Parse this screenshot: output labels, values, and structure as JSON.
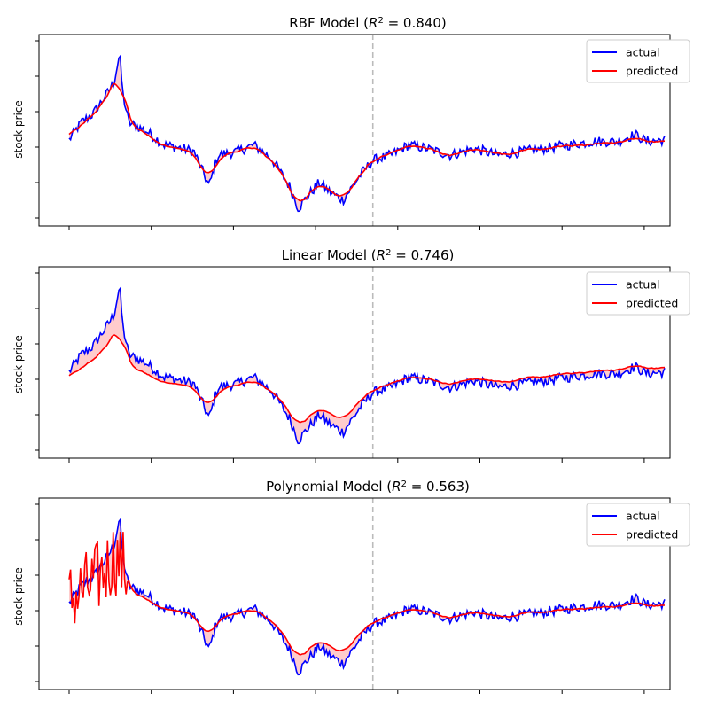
{
  "figure": {
    "shared_x_note": "",
    "colors": {
      "actual": "#0000ff",
      "predicted": "#ff0000",
      "gap_fill": "#ff9a9a",
      "split_line": "#bbbbbb"
    }
  },
  "chart_data": [
    {
      "type": "line",
      "title_prefix": "RBF Model (",
      "title_r2": "R",
      "title_r2_sup": "2",
      "title_suffix": " = 0.840)",
      "r2": 0.84,
      "xlabel": "",
      "ylabel": "stock price",
      "x_tick_labels": "none",
      "y_tick_labels": "none",
      "split_marker": "dashed vertical line at train/test split",
      "legend": {
        "placement": "top-right",
        "entries": [
          "actual",
          "predicted"
        ]
      },
      "series": [
        {
          "name": "actual",
          "color": "#0000ff"
        },
        {
          "name": "predicted",
          "color": "#ff0000"
        }
      ]
    },
    {
      "type": "line",
      "title_prefix": "Linear Model (",
      "title_r2": "R",
      "title_r2_sup": "2",
      "title_suffix": " = 0.746)",
      "r2": 0.746,
      "xlabel": "",
      "ylabel": "stock price",
      "x_tick_labels": "none",
      "y_tick_labels": "none",
      "split_marker": "dashed vertical line at train/test split",
      "legend": {
        "placement": "top-right",
        "entries": [
          "actual",
          "predicted"
        ]
      },
      "series": [
        {
          "name": "actual",
          "color": "#0000ff"
        },
        {
          "name": "predicted",
          "color": "#ff0000"
        }
      ]
    },
    {
      "type": "line",
      "title_prefix": "Polynomial Model (",
      "title_r2": "R",
      "title_r2_sup": "2",
      "title_suffix": " = 0.563)",
      "r2": 0.563,
      "xlabel": "",
      "ylabel": "stock price",
      "x_tick_labels": "none",
      "y_tick_labels": "none",
      "split_marker": "dashed vertical line at train/test split",
      "legend": {
        "placement": "top-right",
        "entries": [
          "actual",
          "predicted"
        ]
      },
      "series": [
        {
          "name": "actual",
          "color": "#0000ff"
        },
        {
          "name": "predicted",
          "color": "#ff0000"
        }
      ]
    }
  ]
}
